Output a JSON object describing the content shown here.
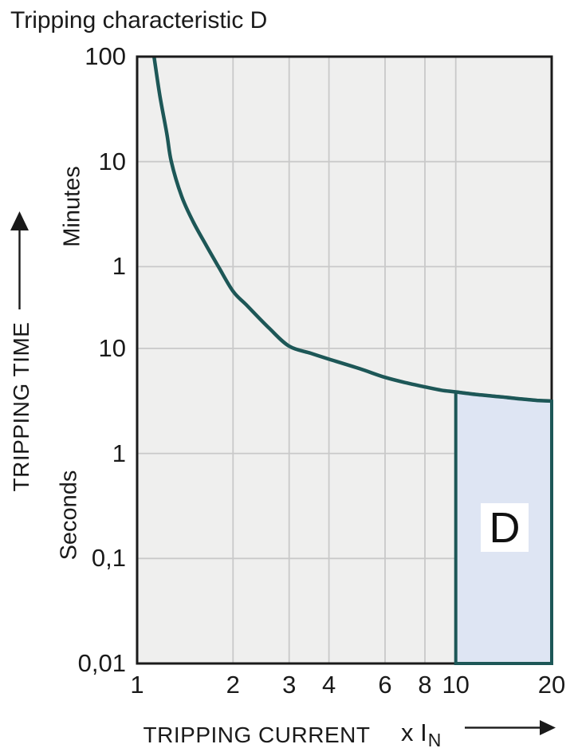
{
  "title": "Tripping characteristic D",
  "colors": {
    "text": "#1a1a1a",
    "frame": "#1a1a1a",
    "plot_bg": "#efefee",
    "gridline": "#c9c9c9",
    "curve": "#1d5757",
    "region_fill": "#dee5f3",
    "region_border": "#1d5757",
    "label_box_bg": "#ffffff"
  },
  "icons": {
    "y_axis_arrow": "up-arrow",
    "x_axis_arrow": "right-arrow"
  },
  "chart_data": {
    "type": "line",
    "title": "Tripping characteristic D",
    "grid": "on",
    "x_axis": {
      "label": "TRIPPING CURRENT",
      "unit_prefix": "x I",
      "unit_subscript": "N",
      "scale": "log",
      "range": [
        1,
        20
      ],
      "ticks": [
        {
          "label": "1",
          "value": 1
        },
        {
          "label": "2",
          "value": 2
        },
        {
          "label": "3",
          "value": 3
        },
        {
          "label": "4",
          "value": 4
        },
        {
          "label": "6",
          "value": 6
        },
        {
          "label": "8",
          "value": 8
        },
        {
          "label": "10",
          "value": 10
        },
        {
          "label": "20",
          "value": 20
        }
      ]
    },
    "y_axis": {
      "label": "TRIPPING TIME",
      "scale": "log",
      "range_seconds": [
        0.01,
        6000
      ],
      "unit_groups": {
        "upper": "Minutes",
        "lower": "Seconds"
      },
      "ticks": [
        {
          "label": "100",
          "seconds": 6000
        },
        {
          "label": "10",
          "seconds": 600
        },
        {
          "label": "1",
          "seconds": 60
        },
        {
          "label": "10",
          "seconds": 10
        },
        {
          "label": "1",
          "seconds": 1
        },
        {
          "label": "0,1",
          "seconds": 0.1
        },
        {
          "label": "0,01",
          "seconds": 0.01
        }
      ]
    },
    "series": [
      {
        "name": "thermal-tripping-curve",
        "points": [
          [
            1.13,
            6000
          ],
          [
            1.18,
            2500
          ],
          [
            1.24,
            1100
          ],
          [
            1.28,
            600
          ],
          [
            1.38,
            280
          ],
          [
            1.5,
            160
          ],
          [
            1.65,
            95
          ],
          [
            1.8,
            60
          ],
          [
            2.0,
            35
          ],
          [
            2.2,
            26
          ],
          [
            2.6,
            15.5
          ],
          [
            3.0,
            10.5
          ],
          [
            3.5,
            9.0
          ],
          [
            4.0,
            7.9
          ],
          [
            5.0,
            6.4
          ],
          [
            6.0,
            5.3
          ],
          [
            7.0,
            4.7
          ],
          [
            8.0,
            4.3
          ],
          [
            9.0,
            4.0
          ],
          [
            10.0,
            3.85
          ],
          [
            12,
            3.6
          ],
          [
            14,
            3.45
          ],
          [
            16,
            3.3
          ],
          [
            18,
            3.2
          ],
          [
            20,
            3.15
          ]
        ]
      }
    ],
    "region": {
      "label": "D",
      "x_from": 10,
      "x_to": 20,
      "bottom_seconds": 0.01,
      "top": "curve"
    }
  }
}
